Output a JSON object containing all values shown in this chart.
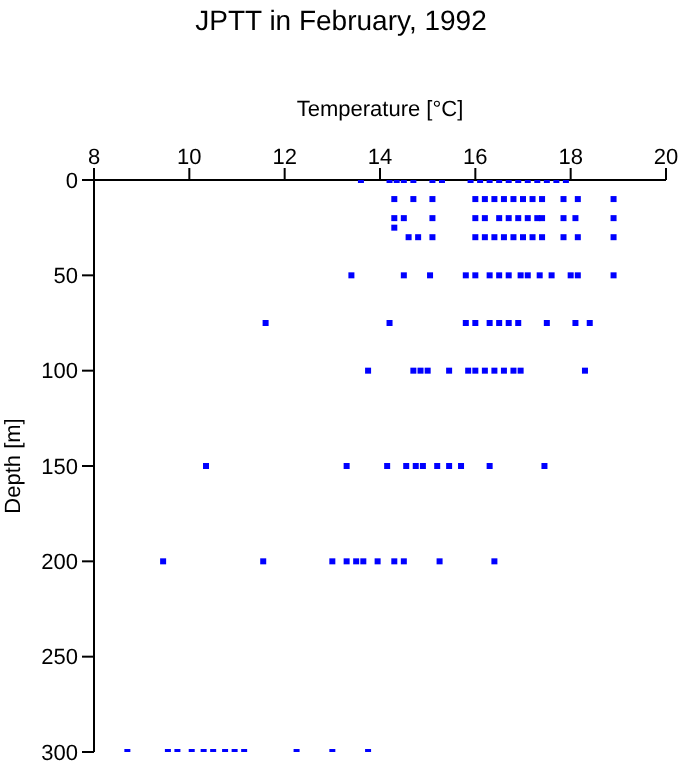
{
  "chart_data": {
    "type": "scatter",
    "title": "JPTT in February, 1992",
    "xlabel": "Temperature [°C]",
    "ylabel": "Depth [m]",
    "xlim": [
      8,
      20
    ],
    "xticks": [
      8,
      10,
      12,
      14,
      16,
      18,
      20
    ],
    "ylim": [
      300,
      0
    ],
    "yticks": [
      0,
      50,
      100,
      150,
      200,
      250,
      300
    ],
    "grid": false,
    "legend": false,
    "marker": "square",
    "series": [
      {
        "color": "#0000ff",
        "x": [
          13.6,
          14.2,
          14.35,
          14.5,
          14.7,
          15.1,
          15.3,
          15.9,
          16.1,
          16.3,
          16.5,
          16.7,
          16.9,
          17.1,
          17.3,
          17.5,
          17.7,
          17.9,
          14.3,
          14.7,
          15.1,
          16.0,
          16.2,
          16.4,
          16.6,
          16.8,
          17.0,
          17.2,
          17.4,
          17.85,
          18.15,
          18.9,
          14.3,
          14.5,
          15.1,
          16.0,
          16.2,
          16.5,
          16.7,
          16.9,
          17.1,
          17.3,
          17.4,
          17.85,
          18.1,
          18.9,
          14.3,
          14.6,
          14.8,
          15.1,
          16.0,
          16.2,
          16.4,
          16.6,
          16.8,
          17.0,
          17.2,
          17.4,
          17.85,
          18.15,
          18.9,
          13.4,
          14.5,
          15.05,
          15.8,
          16.0,
          16.3,
          16.5,
          16.7,
          16.95,
          17.1,
          17.35,
          17.6,
          18.0,
          18.15,
          18.9,
          11.6,
          14.2,
          15.8,
          16.0,
          16.3,
          16.5,
          16.7,
          16.9,
          17.5,
          18.1,
          18.4,
          13.75,
          14.7,
          14.85,
          15.0,
          15.45,
          15.85,
          16.0,
          16.2,
          16.4,
          16.6,
          16.8,
          16.95,
          18.3,
          10.35,
          13.3,
          14.15,
          14.55,
          14.75,
          14.9,
          15.2,
          15.45,
          15.7,
          16.3,
          17.45,
          9.45,
          11.55,
          13.0,
          13.3,
          13.5,
          13.65,
          13.95,
          14.3,
          14.5,
          15.25,
          16.4,
          8.7,
          9.55,
          9.75,
          10.05,
          10.3,
          10.5,
          10.75,
          10.95,
          11.15,
          12.25,
          13.0,
          13.75
        ],
        "values": [
          0,
          0,
          0,
          0,
          0,
          0,
          0,
          0,
          0,
          0,
          0,
          0,
          0,
          0,
          0,
          0,
          0,
          0,
          10,
          10,
          10,
          10,
          10,
          10,
          10,
          10,
          10,
          10,
          10,
          10,
          10,
          10,
          20,
          20,
          20,
          20,
          20,
          20,
          20,
          20,
          20,
          20,
          20,
          20,
          20,
          20,
          25,
          30,
          30,
          30,
          30,
          30,
          30,
          30,
          30,
          30,
          30,
          30,
          30,
          30,
          30,
          50,
          50,
          50,
          50,
          50,
          50,
          50,
          50,
          50,
          50,
          50,
          50,
          50,
          50,
          50,
          75,
          75,
          75,
          75,
          75,
          75,
          75,
          75,
          75,
          75,
          75,
          100,
          100,
          100,
          100,
          100,
          100,
          100,
          100,
          100,
          100,
          100,
          100,
          100,
          150,
          150,
          150,
          150,
          150,
          150,
          150,
          150,
          150,
          150,
          150,
          200,
          200,
          200,
          200,
          200,
          200,
          200,
          200,
          200,
          200,
          200,
          300,
          300,
          300,
          300,
          300,
          300,
          300,
          300,
          300,
          300,
          300,
          300
        ]
      }
    ]
  }
}
